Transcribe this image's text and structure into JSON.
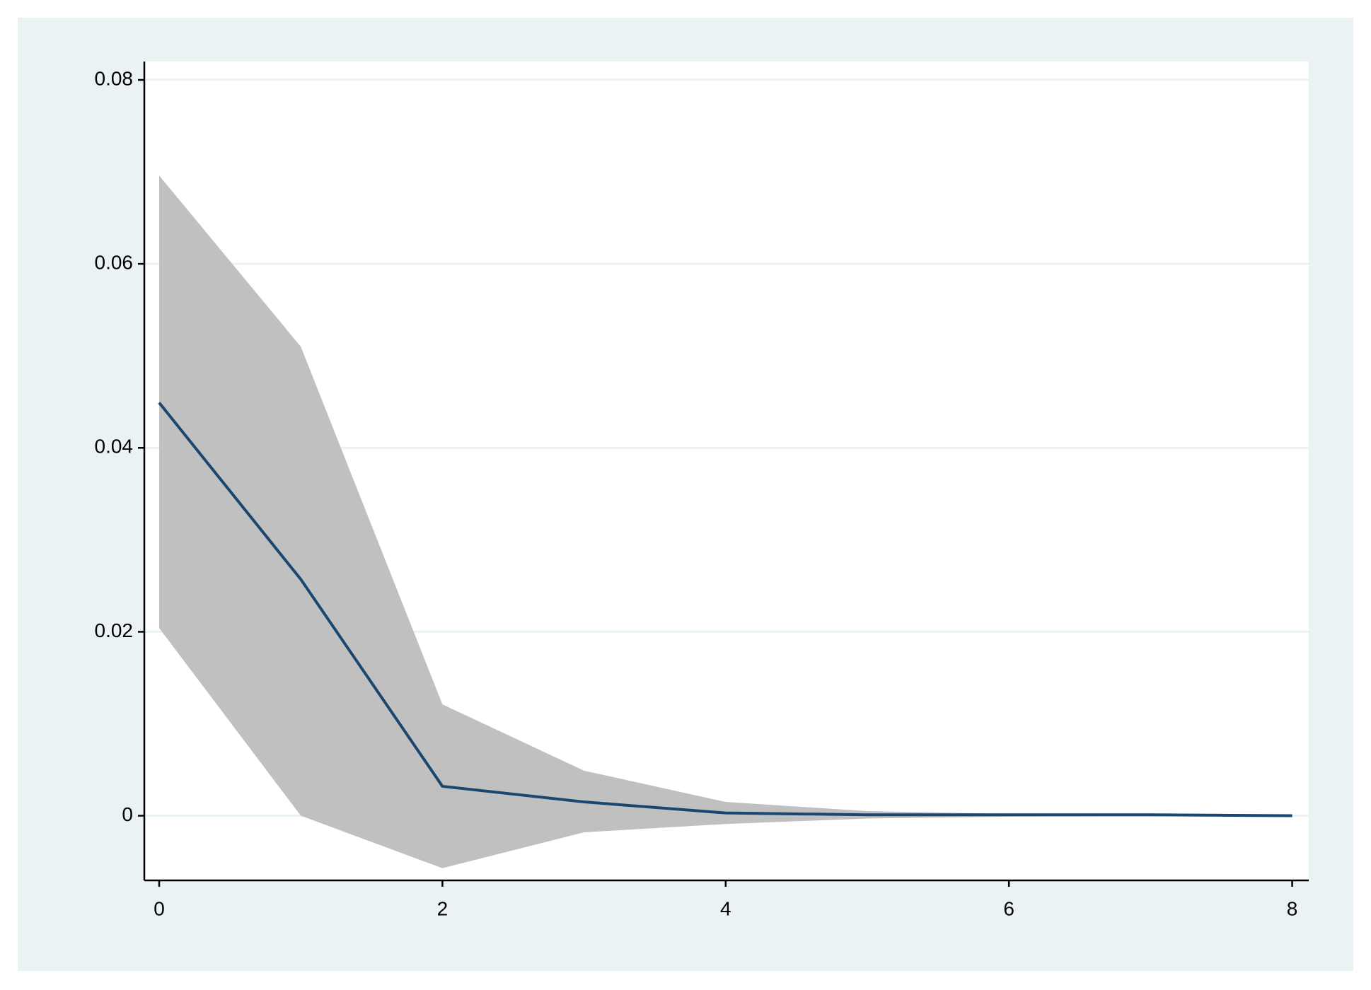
{
  "chart_data": {
    "type": "line",
    "x": [
      0,
      1,
      2,
      3,
      4,
      5,
      6,
      7,
      8
    ],
    "series": [
      {
        "color": "#1a476f",
        "values": [
          0.0449,
          0.0257,
          0.0032,
          0.0015,
          0.0003,
          0.0001,
          0.0001,
          0.0001,
          0
        ]
      }
    ],
    "band": {
      "color": "#c0c0c0",
      "upper": [
        0.0696,
        0.051,
        0.0121,
        0.0049,
        0.0015,
        0.0005,
        0.0002,
        0.0001,
        0
      ],
      "lower": [
        0.0204,
        0,
        -0.0057,
        -0.0018,
        -0.0009,
        -0.0003,
        -0.0001,
        0,
        0
      ]
    },
    "xlim": [
      -0.105,
      8.117
    ],
    "xticks": [
      0,
      2,
      4,
      6,
      8
    ],
    "ylim": [
      -0.00703,
      0.082
    ],
    "yticks": [
      0,
      0.02,
      0.04,
      0.06,
      0.08
    ],
    "grid": true
  }
}
